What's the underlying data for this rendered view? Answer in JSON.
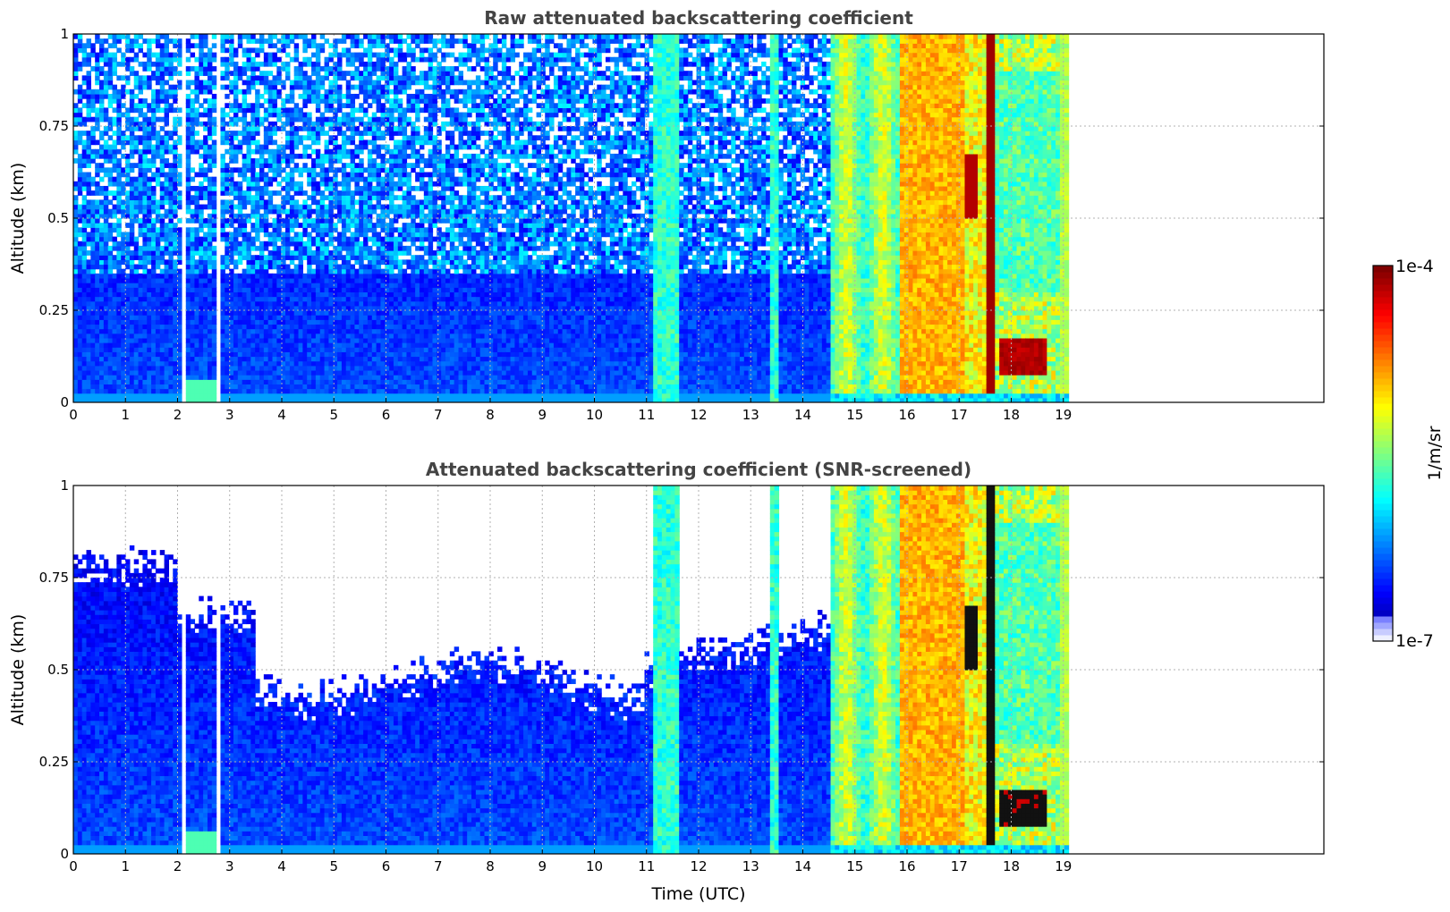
{
  "chart_data": [
    {
      "type": "heatmap",
      "title": "Raw attenuated backscattering coefficient",
      "xlabel": "",
      "ylabel": "Altitude (km)",
      "xlim": [
        0,
        24
      ],
      "ylim": [
        0,
        1
      ],
      "x_ticks": [
        0,
        1,
        2,
        3,
        4,
        5,
        6,
        7,
        8,
        9,
        10,
        11,
        12,
        13,
        14,
        15,
        16,
        17,
        18,
        19
      ],
      "y_ticks": [
        0,
        0.25,
        0.5,
        0.75,
        1
      ],
      "y_tick_labels": [
        "0",
        "0.25",
        "0.5",
        "0.75",
        "1"
      ],
      "grid": true,
      "colormap": "jet",
      "log_color_scale": true,
      "data_end_hour": 19.1,
      "screened": false
    },
    {
      "type": "heatmap",
      "title": "Attenuated backscattering coefficient (SNR-screened)",
      "xlabel": "Time (UTC)",
      "ylabel": "Altitude (km)",
      "xlim": [
        0,
        24
      ],
      "ylim": [
        0,
        1
      ],
      "x_ticks": [
        0,
        1,
        2,
        3,
        4,
        5,
        6,
        7,
        8,
        9,
        10,
        11,
        12,
        13,
        14,
        15,
        16,
        17,
        18,
        19
      ],
      "y_ticks": [
        0,
        0.25,
        0.5,
        0.75,
        1
      ],
      "y_tick_labels": [
        "0",
        "0.25",
        "0.5",
        "0.75",
        "1"
      ],
      "grid": true,
      "colormap": "jet",
      "log_color_scale": true,
      "data_end_hour": 19.1,
      "screened": true
    }
  ],
  "colorbar": {
    "label": "1/m/sr",
    "max_label": "1e-4",
    "min_label": "1e-7",
    "colormap": "jet"
  }
}
